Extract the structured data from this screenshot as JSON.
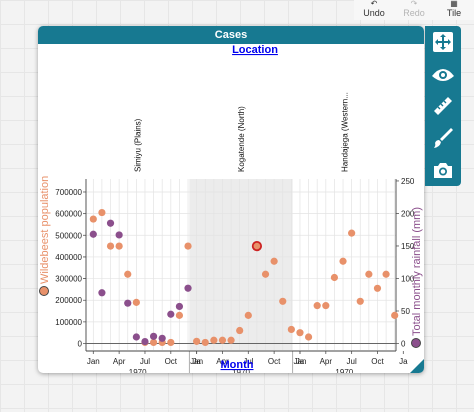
{
  "toolbar": {
    "undo_label": "Undo",
    "redo_label": "Redo",
    "tile_label": "Tile"
  },
  "card": {
    "title": "Cases"
  },
  "chart_data": {
    "type": "scatter",
    "top_axis_label": "Location",
    "bottom_axis_label": "Month",
    "left_axis_label": "Wildebeest population",
    "right_axis_label": "Total monthly rainfall (mm)",
    "left_ylim": [
      -30000,
      760000
    ],
    "right_ylim": [
      -10,
      253
    ],
    "left_ticks": [
      "0",
      "100000",
      "200000",
      "300000",
      "400000",
      "500000",
      "600000",
      "700000"
    ],
    "right_ticks": [
      "0",
      "50",
      "100",
      "150",
      "200",
      "250"
    ],
    "panels": [
      {
        "location": "Simiyu (Plains)",
        "shaded": false,
        "month_ticks": [
          "Jan",
          "Apr",
          "Jul",
          "Oct",
          "Ja"
        ],
        "year_label": "1970"
      },
      {
        "location": "Kogatende (North)",
        "shaded": true,
        "month_ticks": [
          "Jan",
          "Apr",
          "Jul",
          "Oct",
          "Ja"
        ],
        "year_label": "1970"
      },
      {
        "location": "Handajega (Western...",
        "shaded": false,
        "month_ticks": [
          "Jan",
          "Apr",
          "Jul",
          "Oct",
          "Ja"
        ],
        "year_label": "1970"
      }
    ],
    "series": [
      {
        "name": "Wildebeest population",
        "color": "#e8916a",
        "axis": "left",
        "points": [
          {
            "panel": 0,
            "month": 1,
            "y": 575000
          },
          {
            "panel": 0,
            "month": 2,
            "y": 605000
          },
          {
            "panel": 0,
            "month": 3,
            "y": 450000
          },
          {
            "panel": 0,
            "month": 4,
            "y": 450000
          },
          {
            "panel": 0,
            "month": 5,
            "y": 320000
          },
          {
            "panel": 0,
            "month": 6,
            "y": 190000
          },
          {
            "panel": 0,
            "month": 7,
            "y": 5000
          },
          {
            "panel": 0,
            "month": 8,
            "y": 5000
          },
          {
            "panel": 0,
            "month": 9,
            "y": 5000
          },
          {
            "panel": 0,
            "month": 10,
            "y": 5000
          },
          {
            "panel": 0,
            "month": 11,
            "y": 130000
          },
          {
            "panel": 0,
            "month": 12,
            "y": 450000
          },
          {
            "panel": 1,
            "month": 1,
            "y": 10000
          },
          {
            "panel": 1,
            "month": 2,
            "y": 5000
          },
          {
            "panel": 1,
            "month": 3,
            "y": 15000
          },
          {
            "panel": 1,
            "month": 4,
            "y": 15000
          },
          {
            "panel": 1,
            "month": 5,
            "y": 15000
          },
          {
            "panel": 1,
            "month": 6,
            "y": 60000
          },
          {
            "panel": 1,
            "month": 7,
            "y": 130000
          },
          {
            "panel": 1,
            "month": 8,
            "y": 450000,
            "selected": true
          },
          {
            "panel": 1,
            "month": 9,
            "y": 320000
          },
          {
            "panel": 1,
            "month": 10,
            "y": 380000
          },
          {
            "panel": 1,
            "month": 11,
            "y": 195000
          },
          {
            "panel": 1,
            "month": 12,
            "y": 65000
          },
          {
            "panel": 2,
            "month": 1,
            "y": 50000
          },
          {
            "panel": 2,
            "month": 2,
            "y": 30000
          },
          {
            "panel": 2,
            "month": 3,
            "y": 175000
          },
          {
            "panel": 2,
            "month": 4,
            "y": 175000
          },
          {
            "panel": 2,
            "month": 5,
            "y": 305000
          },
          {
            "panel": 2,
            "month": 6,
            "y": 380000
          },
          {
            "panel": 2,
            "month": 7,
            "y": 510000
          },
          {
            "panel": 2,
            "month": 8,
            "y": 195000
          },
          {
            "panel": 2,
            "month": 9,
            "y": 320000
          },
          {
            "panel": 2,
            "month": 10,
            "y": 255000
          },
          {
            "panel": 2,
            "month": 11,
            "y": 320000
          },
          {
            "panel": 2,
            "month": 12,
            "y": 130000
          }
        ]
      },
      {
        "name": "Total monthly rainfall (mm)",
        "color": "#8b4f8c",
        "axis": "right",
        "points": [
          {
            "panel": 0,
            "month": 1,
            "y": 168
          },
          {
            "panel": 0,
            "month": 2,
            "y": 78
          },
          {
            "panel": 0,
            "month": 3,
            "y": 185
          },
          {
            "panel": 0,
            "month": 4,
            "y": 167
          },
          {
            "panel": 0,
            "month": 5,
            "y": 62
          },
          {
            "panel": 0,
            "month": 6,
            "y": 10
          },
          {
            "panel": 0,
            "month": 7,
            "y": 3
          },
          {
            "panel": 0,
            "month": 8,
            "y": 11
          },
          {
            "panel": 0,
            "month": 9,
            "y": 8
          },
          {
            "panel": 0,
            "month": 10,
            "y": 45
          },
          {
            "panel": 0,
            "month": 11,
            "y": 57
          },
          {
            "panel": 0,
            "month": 12,
            "y": 85
          }
        ]
      }
    ],
    "grid": true,
    "legend": "none"
  }
}
